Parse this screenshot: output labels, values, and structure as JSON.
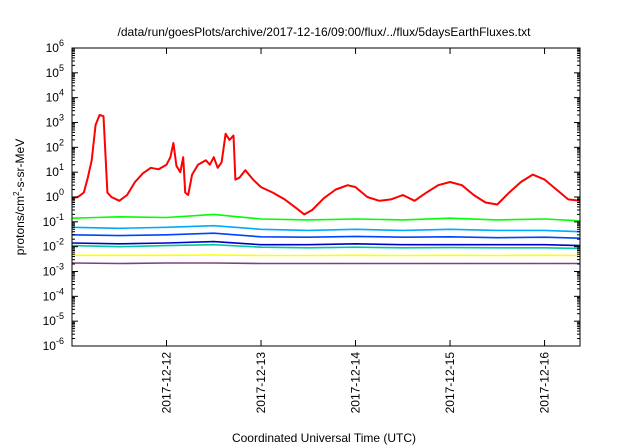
{
  "chart_data": {
    "type": "line",
    "title": "/data/run/goesPlots/archive/2017-12-16/09:00/flux/../flux/5daysEarthFluxes.txt",
    "xlabel": "Coordinated Universal Time (UTC)",
    "ylabel": {
      "base": "protons/cm",
      "sup": "2",
      "rest": "-s-sr-MeV"
    },
    "yscale": "log",
    "ylim": [
      1e-06,
      1000000.0
    ],
    "yticks": [
      {
        "value": 1e-06,
        "base": "10",
        "exp": "-6"
      },
      {
        "value": 1e-05,
        "base": "10",
        "exp": "-5"
      },
      {
        "value": 0.0001,
        "base": "10",
        "exp": "-4"
      },
      {
        "value": 0.001,
        "base": "10",
        "exp": "-3"
      },
      {
        "value": 0.01,
        "base": "10",
        "exp": "-2"
      },
      {
        "value": 0.1,
        "base": "10",
        "exp": "-1"
      },
      {
        "value": 1,
        "base": "10",
        "exp": "0"
      },
      {
        "value": 10,
        "base": "10",
        "exp": "1"
      },
      {
        "value": 100,
        "base": "10",
        "exp": "2"
      },
      {
        "value": 1000,
        "base": "10",
        "exp": "3"
      },
      {
        "value": 10000,
        "base": "10",
        "exp": "4"
      },
      {
        "value": 100000,
        "base": "10",
        "exp": "5"
      },
      {
        "value": 1000000,
        "base": "10",
        "exp": "6"
      }
    ],
    "xlim": [
      "2017-12-11T00:00",
      "2017-12-16T09:00"
    ],
    "xticks": [
      {
        "value": "2017-12-12T00:00",
        "label": "2017-12-12"
      },
      {
        "value": "2017-12-13T00:00",
        "label": "2017-12-13"
      },
      {
        "value": "2017-12-14T00:00",
        "label": "2017-12-14"
      },
      {
        "value": "2017-12-15T00:00",
        "label": "2017-12-15"
      },
      {
        "value": "2017-12-16T00:00",
        "label": "2017-12-16"
      }
    ],
    "grid": false,
    "legend": "none",
    "series": [
      {
        "color": "#ff0000",
        "values": [
          [
            "2017-12-11T00:00",
            0.9
          ],
          [
            "2017-12-11T01:30",
            1.0
          ],
          [
            "2017-12-11T03:00",
            1.5
          ],
          [
            "2017-12-11T04:00",
            6
          ],
          [
            "2017-12-11T05:00",
            30
          ],
          [
            "2017-12-11T06:00",
            800
          ],
          [
            "2017-12-11T07:00",
            2000
          ],
          [
            "2017-12-11T08:00",
            1800
          ],
          [
            "2017-12-11T09:00",
            1.5
          ],
          [
            "2017-12-11T10:00",
            1.0
          ],
          [
            "2017-12-11T12:00",
            0.7
          ],
          [
            "2017-12-11T14:00",
            1.2
          ],
          [
            "2017-12-11T16:00",
            4
          ],
          [
            "2017-12-11T18:00",
            9
          ],
          [
            "2017-12-11T20:00",
            15
          ],
          [
            "2017-12-11T22:00",
            13
          ],
          [
            "2017-12-12T00:00",
            20
          ],
          [
            "2017-12-12T01:00",
            40
          ],
          [
            "2017-12-12T01:45",
            150
          ],
          [
            "2017-12-12T02:30",
            18
          ],
          [
            "2017-12-12T03:30",
            10
          ],
          [
            "2017-12-12T04:15",
            40
          ],
          [
            "2017-12-12T04:45",
            1.5
          ],
          [
            "2017-12-12T05:30",
            1.2
          ],
          [
            "2017-12-12T06:30",
            8
          ],
          [
            "2017-12-12T08:00",
            20
          ],
          [
            "2017-12-12T10:00",
            30
          ],
          [
            "2017-12-12T11:00",
            20
          ],
          [
            "2017-12-12T12:00",
            40
          ],
          [
            "2017-12-12T13:00",
            15
          ],
          [
            "2017-12-12T14:00",
            25
          ],
          [
            "2017-12-12T15:00",
            350
          ],
          [
            "2017-12-12T16:00",
            200
          ],
          [
            "2017-12-12T17:00",
            300
          ],
          [
            "2017-12-12T17:30",
            5
          ],
          [
            "2017-12-12T18:30",
            6
          ],
          [
            "2017-12-12T20:00",
            12
          ],
          [
            "2017-12-12T22:00",
            5
          ],
          [
            "2017-12-13T00:00",
            2.5
          ],
          [
            "2017-12-13T03:00",
            1.5
          ],
          [
            "2017-12-13T06:00",
            0.8
          ],
          [
            "2017-12-13T09:00",
            0.35
          ],
          [
            "2017-12-13T11:00",
            0.2
          ],
          [
            "2017-12-13T13:00",
            0.3
          ],
          [
            "2017-12-13T16:00",
            0.9
          ],
          [
            "2017-12-13T19:00",
            2.0
          ],
          [
            "2017-12-13T22:00",
            3.0
          ],
          [
            "2017-12-14T00:00",
            2.5
          ],
          [
            "2017-12-14T03:00",
            1.0
          ],
          [
            "2017-12-14T06:00",
            0.7
          ],
          [
            "2017-12-14T09:00",
            0.8
          ],
          [
            "2017-12-14T12:00",
            1.2
          ],
          [
            "2017-12-14T15:00",
            0.7
          ],
          [
            "2017-12-14T18:00",
            1.5
          ],
          [
            "2017-12-14T21:00",
            3.0
          ],
          [
            "2017-12-15T00:00",
            4.0
          ],
          [
            "2017-12-15T03:00",
            3.0
          ],
          [
            "2017-12-15T06:00",
            1.2
          ],
          [
            "2017-12-15T09:00",
            0.6
          ],
          [
            "2017-12-15T12:00",
            0.5
          ],
          [
            "2017-12-15T15:00",
            1.5
          ],
          [
            "2017-12-15T18:00",
            4.0
          ],
          [
            "2017-12-15T21:00",
            8.0
          ],
          [
            "2017-12-16T00:00",
            5.0
          ],
          [
            "2017-12-16T03:00",
            2.0
          ],
          [
            "2017-12-16T06:00",
            0.8
          ],
          [
            "2017-12-16T09:00",
            0.7
          ]
        ]
      },
      {
        "color": "#00ff00",
        "values": [
          [
            "2017-12-11T00:00",
            0.14
          ],
          [
            "2017-12-11T06:00",
            0.15
          ],
          [
            "2017-12-11T12:00",
            0.16
          ],
          [
            "2017-12-12T00:00",
            0.15
          ],
          [
            "2017-12-12T12:00",
            0.2
          ],
          [
            "2017-12-13T00:00",
            0.13
          ],
          [
            "2017-12-13T12:00",
            0.12
          ],
          [
            "2017-12-14T00:00",
            0.13
          ],
          [
            "2017-12-14T12:00",
            0.12
          ],
          [
            "2017-12-15T00:00",
            0.14
          ],
          [
            "2017-12-15T12:00",
            0.12
          ],
          [
            "2017-12-16T00:00",
            0.13
          ],
          [
            "2017-12-16T09:00",
            0.11
          ]
        ]
      },
      {
        "color": "#00aaff",
        "values": [
          [
            "2017-12-11T00:00",
            0.06
          ],
          [
            "2017-12-11T12:00",
            0.055
          ],
          [
            "2017-12-12T00:00",
            0.06
          ],
          [
            "2017-12-12T12:00",
            0.07
          ],
          [
            "2017-12-13T00:00",
            0.05
          ],
          [
            "2017-12-13T12:00",
            0.045
          ],
          [
            "2017-12-14T00:00",
            0.05
          ],
          [
            "2017-12-14T12:00",
            0.045
          ],
          [
            "2017-12-15T00:00",
            0.05
          ],
          [
            "2017-12-15T12:00",
            0.045
          ],
          [
            "2017-12-16T00:00",
            0.045
          ],
          [
            "2017-12-16T09:00",
            0.04
          ]
        ]
      },
      {
        "color": "#0044ff",
        "values": [
          [
            "2017-12-11T00:00",
            0.03
          ],
          [
            "2017-12-11T12:00",
            0.028
          ],
          [
            "2017-12-12T00:00",
            0.03
          ],
          [
            "2017-12-12T12:00",
            0.035
          ],
          [
            "2017-12-13T00:00",
            0.025
          ],
          [
            "2017-12-13T12:00",
            0.024
          ],
          [
            "2017-12-14T00:00",
            0.026
          ],
          [
            "2017-12-14T12:00",
            0.024
          ],
          [
            "2017-12-15T00:00",
            0.025
          ],
          [
            "2017-12-15T12:00",
            0.023
          ],
          [
            "2017-12-16T00:00",
            0.024
          ],
          [
            "2017-12-16T09:00",
            0.022
          ]
        ]
      },
      {
        "color": "#0000cc",
        "values": [
          [
            "2017-12-11T00:00",
            0.014
          ],
          [
            "2017-12-11T12:00",
            0.013
          ],
          [
            "2017-12-12T00:00",
            0.014
          ],
          [
            "2017-12-12T12:00",
            0.016
          ],
          [
            "2017-12-13T00:00",
            0.012
          ],
          [
            "2017-12-13T12:00",
            0.012
          ],
          [
            "2017-12-14T00:00",
            0.013
          ],
          [
            "2017-12-14T12:00",
            0.012
          ],
          [
            "2017-12-15T00:00",
            0.012
          ],
          [
            "2017-12-15T12:00",
            0.012
          ],
          [
            "2017-12-16T00:00",
            0.012
          ],
          [
            "2017-12-16T09:00",
            0.011
          ]
        ]
      },
      {
        "color": "#00cc99",
        "values": [
          [
            "2017-12-11T00:00",
            0.011
          ],
          [
            "2017-12-11T12:00",
            0.01
          ],
          [
            "2017-12-12T00:00",
            0.011
          ],
          [
            "2017-12-12T12:00",
            0.012
          ],
          [
            "2017-12-13T00:00",
            0.0095
          ],
          [
            "2017-12-13T12:00",
            0.009
          ],
          [
            "2017-12-14T00:00",
            0.0095
          ],
          [
            "2017-12-14T12:00",
            0.009
          ],
          [
            "2017-12-15T00:00",
            0.0092
          ],
          [
            "2017-12-15T12:00",
            0.009
          ],
          [
            "2017-12-16T00:00",
            0.009
          ],
          [
            "2017-12-16T09:00",
            0.0085
          ]
        ]
      },
      {
        "color": "#ffff00",
        "values": [
          [
            "2017-12-11T00:00",
            0.0045
          ],
          [
            "2017-12-11T12:00",
            0.0045
          ],
          [
            "2017-12-12T00:00",
            0.0045
          ],
          [
            "2017-12-12T12:00",
            0.0046
          ],
          [
            "2017-12-13T00:00",
            0.0044
          ],
          [
            "2017-12-13T12:00",
            0.0044
          ],
          [
            "2017-12-14T00:00",
            0.0045
          ],
          [
            "2017-12-14T12:00",
            0.0044
          ],
          [
            "2017-12-15T00:00",
            0.0045
          ],
          [
            "2017-12-15T12:00",
            0.0044
          ],
          [
            "2017-12-16T00:00",
            0.0045
          ],
          [
            "2017-12-16T09:00",
            0.0044
          ]
        ]
      },
      {
        "color": "#804080",
        "values": [
          [
            "2017-12-11T00:00",
            0.0022
          ],
          [
            "2017-12-11T12:00",
            0.0021
          ],
          [
            "2017-12-12T00:00",
            0.0022
          ],
          [
            "2017-12-12T12:00",
            0.0022
          ],
          [
            "2017-12-13T00:00",
            0.0021
          ],
          [
            "2017-12-13T12:00",
            0.0021
          ],
          [
            "2017-12-14T00:00",
            0.0021
          ],
          [
            "2017-12-14T12:00",
            0.0021
          ],
          [
            "2017-12-15T00:00",
            0.0021
          ],
          [
            "2017-12-15T12:00",
            0.0021
          ],
          [
            "2017-12-16T00:00",
            0.0021
          ],
          [
            "2017-12-16T09:00",
            0.0021
          ]
        ]
      }
    ]
  }
}
